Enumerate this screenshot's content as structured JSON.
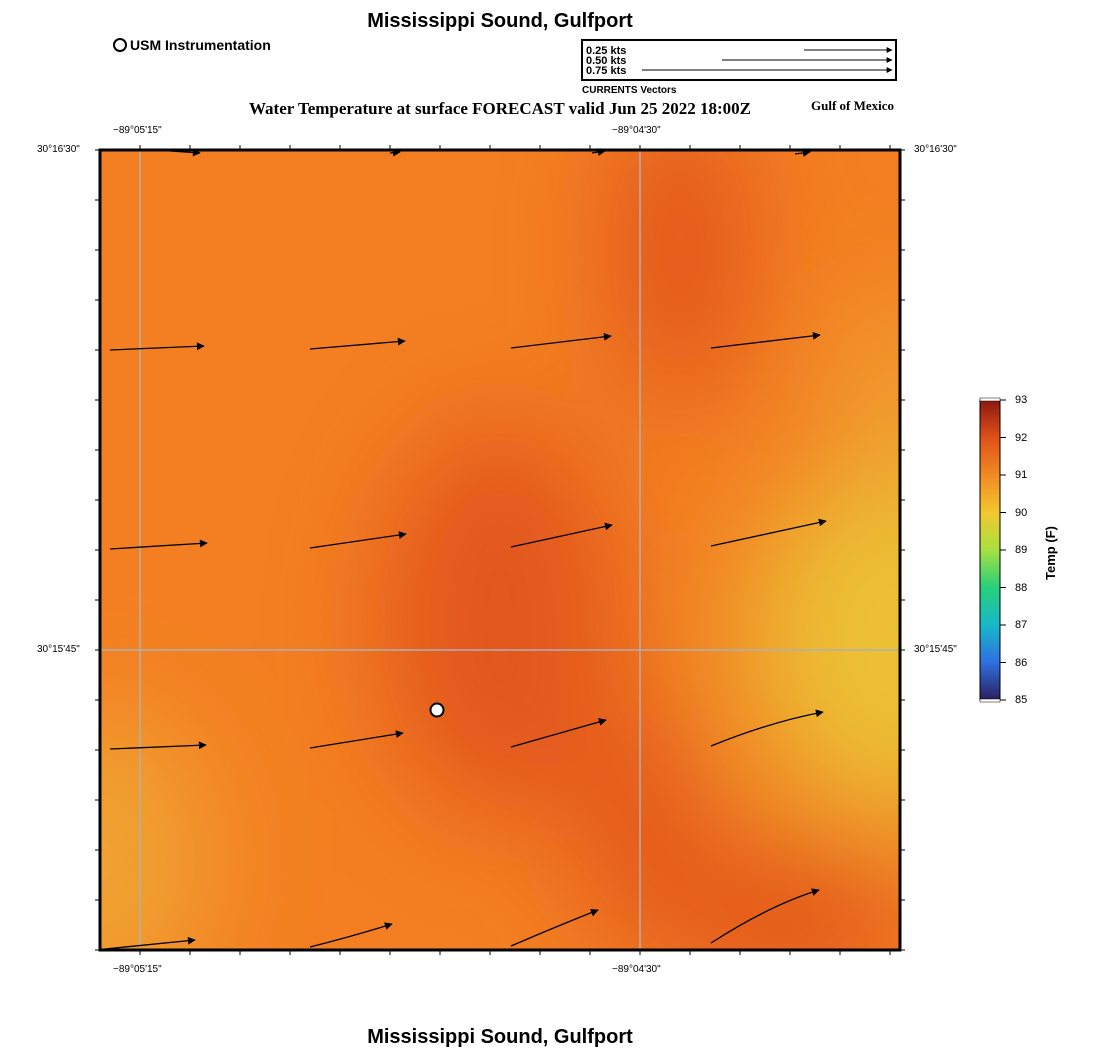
{
  "header": {
    "title": "Mississippi Sound, Gulfport",
    "map_title": "Water Temperature at surface FORECAST valid Jun 25 2022 18:00Z",
    "region": "Gulf of Mexico",
    "footer_title": "Mississippi Sound, Gulfport"
  },
  "instrument_legend": {
    "label": "USM Instrumentation"
  },
  "vector_legend": {
    "items": [
      {
        "label": "0.25 kts",
        "kts": 0.25
      },
      {
        "label": "0.50 kts",
        "kts": 0.5
      },
      {
        "label": "0.75 kts",
        "kts": 0.75
      }
    ],
    "caption": "CURRENTS Vectors"
  },
  "axes": {
    "lon_ticks": [
      "−89°05'15\"",
      "−89°04'30\""
    ],
    "lat_ticks": [
      "30°16'30\"",
      "30°15'45\""
    ]
  },
  "colorbar": {
    "title": "Temp (F)",
    "ticks": [
      "85",
      "86",
      "87",
      "88",
      "89",
      "90",
      "91",
      "92",
      "93"
    ],
    "colors": [
      "#2a1f5e",
      "#2f6fe0",
      "#18b8c8",
      "#27d07a",
      "#a8e040",
      "#f2c830",
      "#f08a22",
      "#e0501a",
      "#8a1810"
    ]
  },
  "field_colors": {
    "base": "#f37f22",
    "warm": "#e2561b",
    "cool": "#ecc036",
    "mild": "#f0a332"
  }
}
